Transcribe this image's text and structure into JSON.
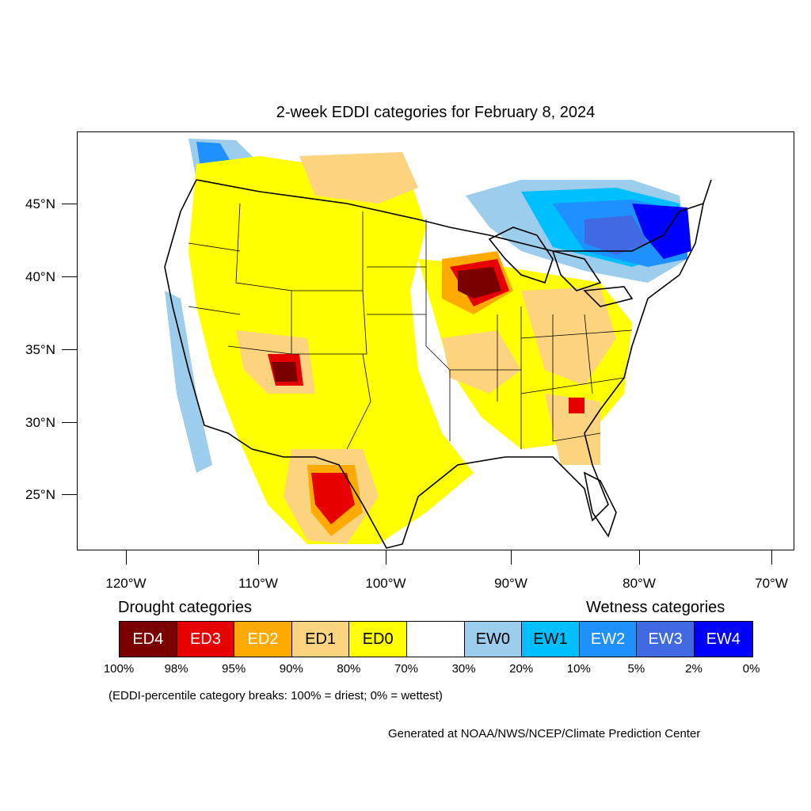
{
  "title": "2-week EDDI categories for February 8, 2024",
  "axes": {
    "lat_labels": [
      "45°N",
      "40°N",
      "35°N",
      "30°N",
      "25°N"
    ],
    "lon_labels": [
      "120°W",
      "110°W",
      "100°W",
      "90°W",
      "80°W",
      "70°W"
    ]
  },
  "legend": {
    "drought_heading": "Drought categories",
    "wetness_heading": "Wetness categories",
    "categories": [
      {
        "label": "ED4",
        "color": "#7a0000",
        "text_color": "#ffffff"
      },
      {
        "label": "ED3",
        "color": "#e60000",
        "text_color": "#ffffff"
      },
      {
        "label": "ED2",
        "color": "#ffaa00",
        "text_color": "#ffffff"
      },
      {
        "label": "ED1",
        "color": "#fcd37f",
        "text_color": "#000000"
      },
      {
        "label": "ED0",
        "color": "#ffff00",
        "text_color": "#000000"
      },
      {
        "label": "",
        "color": "#ffffff",
        "text_color": "#000000"
      },
      {
        "label": "EW0",
        "color": "#9dcdec",
        "text_color": "#000000"
      },
      {
        "label": "EW1",
        "color": "#00bfff",
        "text_color": "#000000"
      },
      {
        "label": "EW2",
        "color": "#1e90ff",
        "text_color": "#ffffff"
      },
      {
        "label": "EW3",
        "color": "#4169e1",
        "text_color": "#ffffff"
      },
      {
        "label": "EW4",
        "color": "#0000ff",
        "text_color": "#ffffff"
      }
    ],
    "percent_breaks": [
      "100%",
      "98%",
      "95%",
      "90%",
      "80%",
      "70%",
      "30%",
      "20%",
      "10%",
      "5%",
      "2%",
      "0%"
    ]
  },
  "note": "(EDDI-percentile category breaks: 100% = driest; 0% = wettest)",
  "credit": "Generated at NOAA/NWS/NCEP/Climate Prediction Center"
}
